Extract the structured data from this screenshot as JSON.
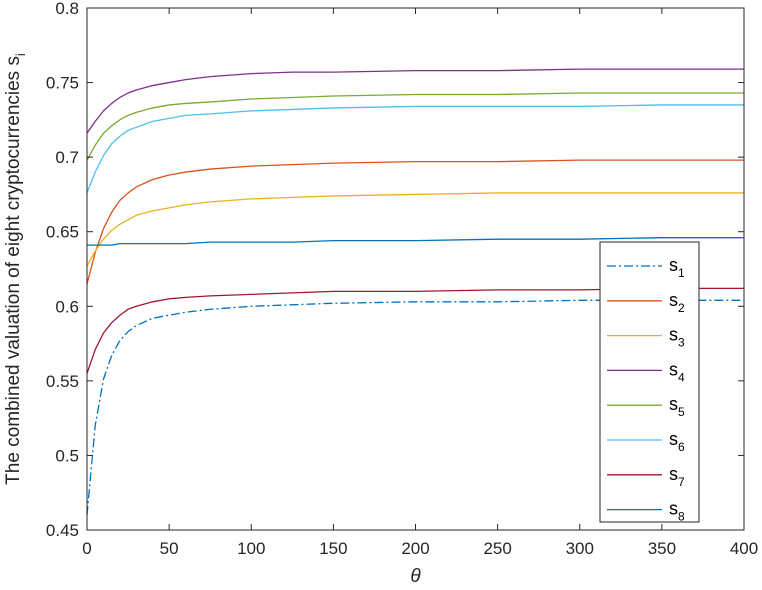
{
  "chart_data": {
    "type": "line",
    "xlabel": "θ",
    "ylabel": "The combined valuation of eight cryptocurrencies s",
    "ylabel_subscript": "i",
    "xlim": [
      0,
      400
    ],
    "ylim": [
      0.45,
      0.8
    ],
    "x_ticks": [
      "0",
      "50",
      "100",
      "150",
      "200",
      "250",
      "300",
      "350",
      "400"
    ],
    "y_ticks": [
      "0.45",
      "0.5",
      "0.55",
      "0.6",
      "0.65",
      "0.7",
      "0.75",
      "0.8"
    ],
    "grid": false,
    "legend_position": "inside-right",
    "x": [
      0,
      5,
      10,
      15,
      20,
      25,
      30,
      40,
      50,
      60,
      75,
      100,
      125,
      150,
      200,
      250,
      300,
      350,
      400
    ],
    "series": [
      {
        "name": "s",
        "sub": "1",
        "color": "#0072BD",
        "dash": "dashdot",
        "values": [
          0.46,
          0.52,
          0.551,
          0.567,
          0.577,
          0.583,
          0.587,
          0.592,
          0.594,
          0.596,
          0.598,
          0.6,
          0.601,
          0.602,
          0.603,
          0.603,
          0.604,
          0.604,
          0.604
        ]
      },
      {
        "name": "s",
        "sub": "2",
        "color": "#D95319",
        "dash": "solid",
        "values": [
          0.615,
          0.636,
          0.652,
          0.663,
          0.671,
          0.676,
          0.68,
          0.685,
          0.688,
          0.69,
          0.692,
          0.694,
          0.695,
          0.696,
          0.697,
          0.697,
          0.698,
          0.698,
          0.698
        ]
      },
      {
        "name": "s",
        "sub": "3",
        "color": "#EDB120",
        "dash": "solid",
        "values": [
          0.627,
          0.637,
          0.645,
          0.651,
          0.655,
          0.658,
          0.661,
          0.664,
          0.666,
          0.668,
          0.67,
          0.672,
          0.673,
          0.674,
          0.675,
          0.676,
          0.676,
          0.676,
          0.676
        ]
      },
      {
        "name": "s",
        "sub": "4",
        "color": "#7E2F8E",
        "dash": "solid",
        "values": [
          0.716,
          0.724,
          0.731,
          0.736,
          0.74,
          0.743,
          0.745,
          0.748,
          0.75,
          0.752,
          0.754,
          0.756,
          0.757,
          0.757,
          0.758,
          0.758,
          0.759,
          0.759,
          0.759
        ]
      },
      {
        "name": "s",
        "sub": "5",
        "color": "#77AC30",
        "dash": "solid",
        "values": [
          0.698,
          0.708,
          0.716,
          0.721,
          0.725,
          0.728,
          0.73,
          0.733,
          0.735,
          0.736,
          0.737,
          0.739,
          0.74,
          0.741,
          0.742,
          0.742,
          0.743,
          0.743,
          0.743
        ]
      },
      {
        "name": "s",
        "sub": "6",
        "color": "#4DBEEE",
        "dash": "solid",
        "values": [
          0.676,
          0.69,
          0.701,
          0.709,
          0.714,
          0.718,
          0.72,
          0.724,
          0.726,
          0.728,
          0.729,
          0.731,
          0.732,
          0.733,
          0.734,
          0.734,
          0.734,
          0.735,
          0.735
        ]
      },
      {
        "name": "s",
        "sub": "7",
        "color": "#A2142F",
        "dash": "solid",
        "values": [
          0.555,
          0.571,
          0.582,
          0.589,
          0.594,
          0.598,
          0.6,
          0.603,
          0.605,
          0.606,
          0.607,
          0.608,
          0.609,
          0.61,
          0.61,
          0.611,
          0.611,
          0.612,
          0.612
        ]
      },
      {
        "name": "s",
        "sub": "8",
        "color": "#0072BD",
        "dash": "solid",
        "values": [
          0.641,
          0.641,
          0.641,
          0.641,
          0.642,
          0.642,
          0.642,
          0.642,
          0.642,
          0.642,
          0.643,
          0.643,
          0.643,
          0.644,
          0.644,
          0.645,
          0.645,
          0.646,
          0.646
        ]
      }
    ]
  }
}
